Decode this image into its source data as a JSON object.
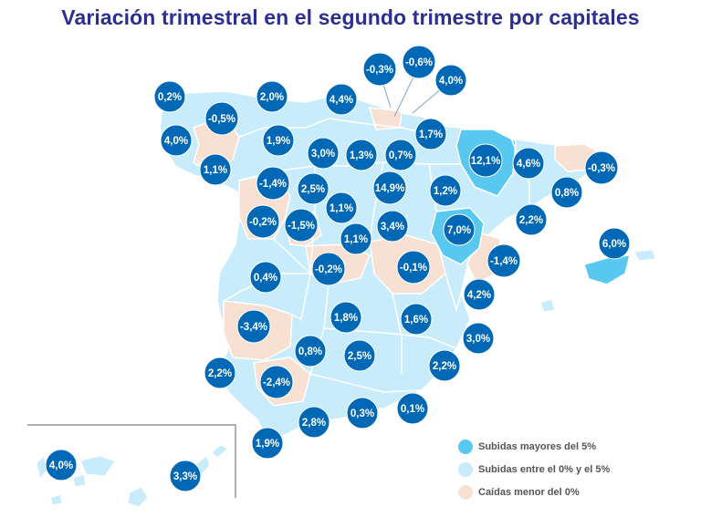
{
  "title": "Variación trimestral en el segundo trimestre por capitales",
  "legend": [
    {
      "label": "Subidas mayores del 5%",
      "color": "#58c8f0"
    },
    {
      "label": "Subidas entre el 0% y el 5%",
      "color": "#c8ecfb"
    },
    {
      "label": "Caídas menor del 0%",
      "color": "#f8e0d2"
    }
  ],
  "colors": {
    "bubble": "#0068b4",
    "bubble_stroke": "#ffffff",
    "title": "#2b2f8f",
    "strong_rise": "#58c8f0",
    "rise": "#c8ecfb",
    "fall": "#f8e0d2"
  },
  "labels": [
    {
      "id": "coruna",
      "value": "0,2%"
    },
    {
      "id": "lugo",
      "value": "-0,5%"
    },
    {
      "id": "pontevedra",
      "value": "4,0%"
    },
    {
      "id": "ourense",
      "value": "1,1%"
    },
    {
      "id": "oviedo",
      "value": "2,0%"
    },
    {
      "id": "santander",
      "value": "4,4%"
    },
    {
      "id": "bilbao",
      "value": "-0,3%"
    },
    {
      "id": "donostia",
      "value": "-0,6%"
    },
    {
      "id": "pamplona",
      "value": "4,0%"
    },
    {
      "id": "leon",
      "value": "1,9%"
    },
    {
      "id": "palencia",
      "value": "3,0%"
    },
    {
      "id": "burgos",
      "value": "1,3%"
    },
    {
      "id": "vitoria",
      "value": "0,7%"
    },
    {
      "id": "logrono",
      "value": "1,7%"
    },
    {
      "id": "huesca",
      "value": "12,1%"
    },
    {
      "id": "lleida",
      "value": "4,6%"
    },
    {
      "id": "girona",
      "value": "-0,3%"
    },
    {
      "id": "barcelona",
      "value": "0,8%"
    },
    {
      "id": "tarragona",
      "value": "2,2%"
    },
    {
      "id": "zamora",
      "value": "-1,4%"
    },
    {
      "id": "valladolid",
      "value": "2,5%"
    },
    {
      "id": "soria",
      "value": "14,9%"
    },
    {
      "id": "zaragoza",
      "value": "1,2%"
    },
    {
      "id": "salamanca",
      "value": "-0,2%"
    },
    {
      "id": "avila",
      "value": "-1,5%"
    },
    {
      "id": "segovia",
      "value": "1,1%"
    },
    {
      "id": "madrid",
      "value": "1,1%"
    },
    {
      "id": "guadalajara",
      "value": "3,4%"
    },
    {
      "id": "teruel",
      "value": "7,0%"
    },
    {
      "id": "castellon",
      "value": "-1,4%"
    },
    {
      "id": "caceres",
      "value": "0,4%"
    },
    {
      "id": "toledo",
      "value": "-0,2%"
    },
    {
      "id": "cuenca",
      "value": "-0,1%"
    },
    {
      "id": "valencia",
      "value": "4,2%"
    },
    {
      "id": "palma",
      "value": "6,0%"
    },
    {
      "id": "badajoz",
      "value": "-3,4%"
    },
    {
      "id": "ciudad-real",
      "value": "1,8%"
    },
    {
      "id": "albacete",
      "value": "1,6%"
    },
    {
      "id": "alicante",
      "value": "3,0%"
    },
    {
      "id": "cordoba",
      "value": "0,8%"
    },
    {
      "id": "jaen",
      "value": "2,5%"
    },
    {
      "id": "murcia",
      "value": "2,2%"
    },
    {
      "id": "huelva",
      "value": "2,2%"
    },
    {
      "id": "sevilla",
      "value": "-2,4%"
    },
    {
      "id": "granada",
      "value": "0,3%"
    },
    {
      "id": "almeria",
      "value": "0,1%"
    },
    {
      "id": "malaga",
      "value": "2,8%"
    },
    {
      "id": "cadiz",
      "value": "1,9%"
    },
    {
      "id": "tenerife",
      "value": "4,0%"
    },
    {
      "id": "las-palmas",
      "value": "3,3%"
    }
  ]
}
